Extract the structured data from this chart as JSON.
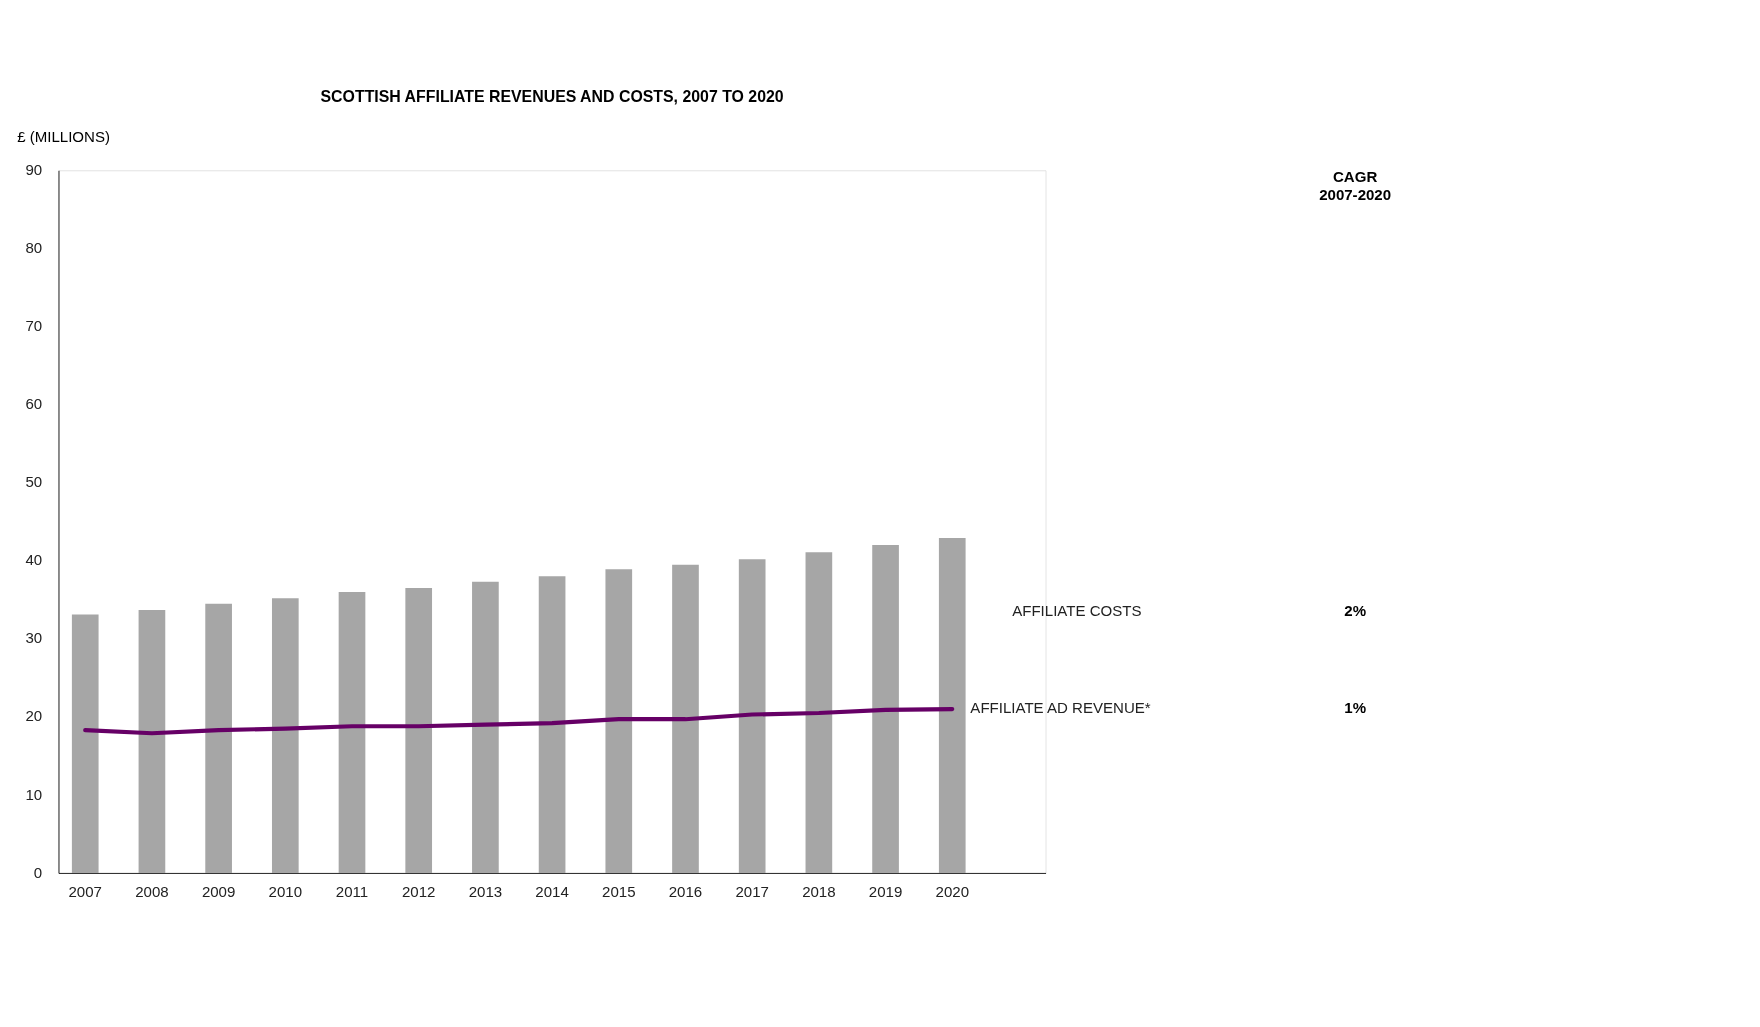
{
  "chart_data": {
    "type": "bar",
    "title": "SCOTTISH AFFILIATE REVENUES AND COSTS, 2007 TO 2020",
    "ylabel": "£ (MILLIONS)",
    "categories": [
      "2007",
      "2008",
      "2009",
      "2010",
      "2011",
      "2012",
      "2013",
      "2014",
      "2015",
      "2016",
      "2017",
      "2018",
      "2019",
      "2020"
    ],
    "series": [
      {
        "name": "AFFILIATE COSTS",
        "color": "#a6a6a6",
        "values": [
          33.1,
          33.7,
          34.5,
          35.2,
          36.0,
          36.5,
          37.3,
          38.0,
          38.9,
          39.5,
          40.2,
          41.1,
          42.0,
          42.9
        ]
      },
      {
        "name": "AFFILIATE AD REVENUE*",
        "type": "line",
        "color": "#660066",
        "values": [
          18.3,
          17.9,
          18.3,
          18.5,
          18.8,
          18.8,
          19.0,
          19.2,
          19.7,
          19.7,
          20.3,
          20.5,
          20.9,
          21.0
        ]
      }
    ],
    "ylim": [
      0,
      90
    ],
    "yticks": [
      0,
      10,
      20,
      30,
      40,
      50,
      60,
      70,
      80,
      90
    ],
    "grid": false,
    "legend": false,
    "annotations": [
      "CAGR 2007-2020",
      "2%",
      "1%"
    ]
  }
}
